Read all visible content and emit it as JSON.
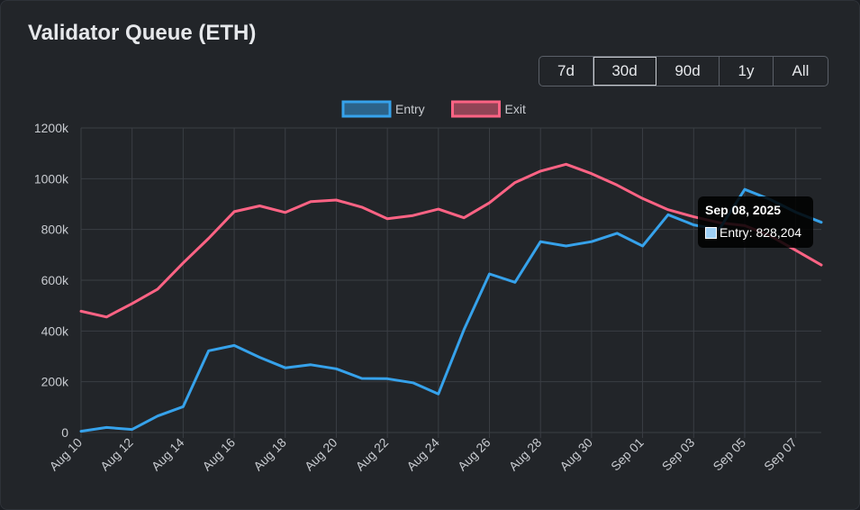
{
  "header": {
    "title": "Validator Queue (ETH)"
  },
  "ranges": [
    "7d",
    "30d",
    "90d",
    "1y",
    "All"
  ],
  "active_range": "30d",
  "colors": {
    "entry": "#36a2eb",
    "exit": "#ff6384",
    "grid": "#3a3e44",
    "text": "#c8cbd0"
  },
  "tooltip": {
    "date": "Sep 08, 2025",
    "series": "Entry",
    "value_text": "828,204"
  },
  "chart_data": {
    "type": "line",
    "x": [
      "Aug 10",
      "Aug 11",
      "Aug 12",
      "Aug 13",
      "Aug 14",
      "Aug 15",
      "Aug 16",
      "Aug 17",
      "Aug 18",
      "Aug 19",
      "Aug 20",
      "Aug 21",
      "Aug 22",
      "Aug 23",
      "Aug 24",
      "Aug 25",
      "Aug 26",
      "Aug 27",
      "Aug 28",
      "Aug 29",
      "Aug 30",
      "Aug 31",
      "Sep 01",
      "Sep 02",
      "Sep 03",
      "Sep 04",
      "Sep 05",
      "Sep 06",
      "Sep 07",
      "Sep 08"
    ],
    "x_tick_labels": [
      "Aug 10",
      "Aug 12",
      "Aug 14",
      "Aug 16",
      "Aug 18",
      "Aug 20",
      "Aug 22",
      "Aug 24",
      "Aug 26",
      "Aug 28",
      "Aug 30",
      "Sep 01",
      "Sep 03",
      "Sep 05",
      "Sep 07"
    ],
    "y_tick_labels": [
      "0",
      "200k",
      "400k",
      "600k",
      "800k",
      "1000k",
      "1200k"
    ],
    "ylim": [
      0,
      1200000
    ],
    "legend_position": "top",
    "grid": true,
    "series": [
      {
        "name": "Entry",
        "color": "#36a2eb",
        "values": [
          5000,
          20000,
          12000,
          65000,
          102000,
          322000,
          343000,
          296000,
          255000,
          267000,
          251000,
          213000,
          212000,
          196000,
          152000,
          405000,
          625000,
          592000,
          752000,
          735000,
          752000,
          785000,
          735000,
          858000,
          818000,
          800000,
          958000,
          918000,
          868000,
          828204
        ]
      },
      {
        "name": "Exit",
        "color": "#ff6384",
        "values": [
          478000,
          455000,
          508000,
          565000,
          668000,
          765000,
          870000,
          893000,
          867000,
          910000,
          916000,
          888000,
          842000,
          855000,
          880000,
          846000,
          905000,
          985000,
          1030000,
          1057000,
          1020000,
          975000,
          922000,
          878000,
          850000,
          827000,
          815000,
          775000,
          718000,
          660000
        ]
      }
    ]
  }
}
